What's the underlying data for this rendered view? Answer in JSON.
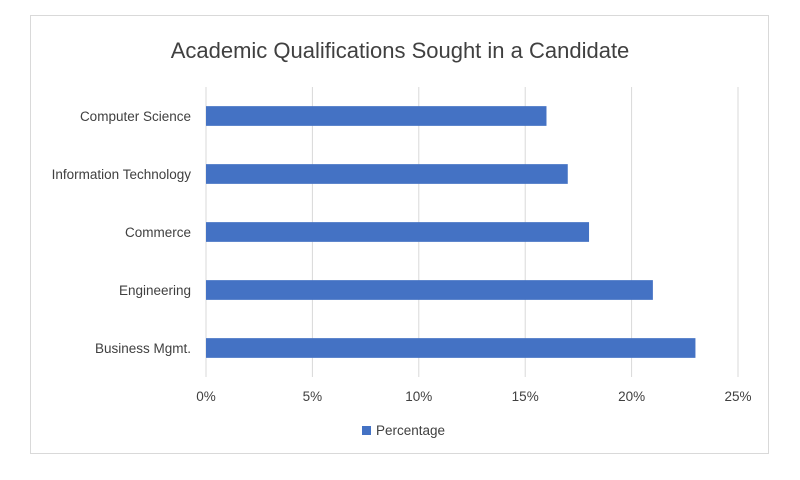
{
  "chart_data": {
    "type": "bar",
    "orientation": "horizontal",
    "title": "Academic Qualifications Sought in a Candidate",
    "categories": [
      "Computer Science",
      "Information Technology",
      "Commerce",
      "Engineering",
      "Business Mgmt."
    ],
    "series": [
      {
        "name": "Percentage",
        "values": [
          16,
          17,
          18,
          21,
          23
        ],
        "color": "#4472c4"
      }
    ],
    "xlim": [
      0,
      25
    ],
    "x_ticks": [
      0,
      5,
      10,
      15,
      20,
      25
    ],
    "x_tick_labels": [
      "0%",
      "5%",
      "10%",
      "15%",
      "20%",
      "25%"
    ],
    "grid": true,
    "legend_position": "bottom"
  }
}
